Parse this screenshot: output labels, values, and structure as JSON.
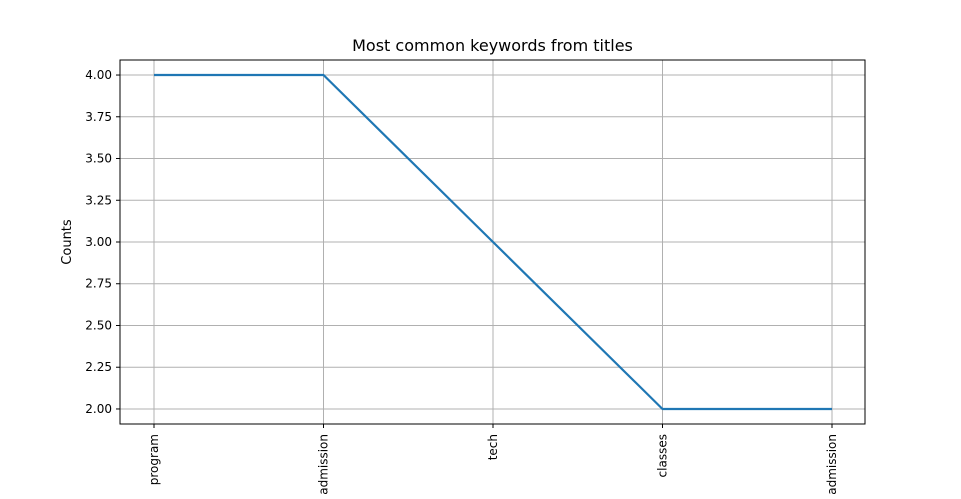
{
  "chart_data": {
    "type": "line",
    "title": "Most common keywords from titles",
    "xlabel": "",
    "ylabel": "Counts",
    "categories": [
      "program",
      "admission",
      "tech",
      "classes",
      "admission"
    ],
    "series": [
      {
        "values": [
          4,
          4,
          3,
          2,
          2
        ]
      }
    ],
    "ylim": [
      1.91,
      4.09
    ],
    "yticks": [
      "2.00",
      "2.25",
      "2.50",
      "2.75",
      "3.00",
      "3.25",
      "3.50",
      "3.75",
      "4.00"
    ],
    "grid": true,
    "x_tick_rotation": "vertical",
    "legend": "none",
    "colors": {
      "line": "#1f77b4",
      "grid": "#b0b0b0",
      "axes": "#000000",
      "background": "#ffffff"
    }
  }
}
